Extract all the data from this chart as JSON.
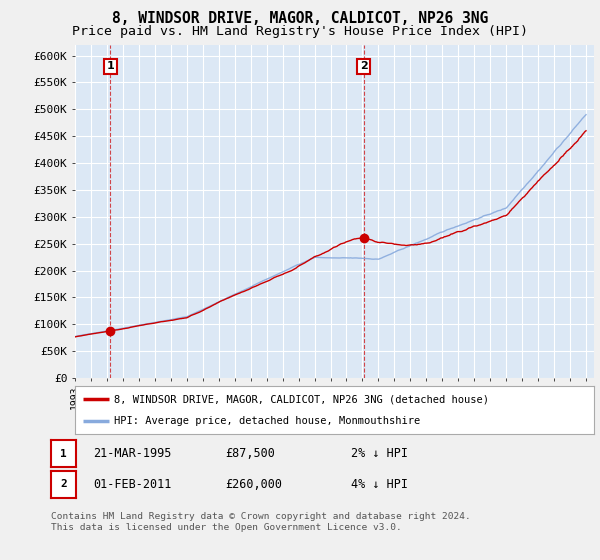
{
  "title_line1": "8, WINDSOR DRIVE, MAGOR, CALDICOT, NP26 3NG",
  "title_line2": "Price paid vs. HM Land Registry's House Price Index (HPI)",
  "ylabel_ticks": [
    "£0",
    "£50K",
    "£100K",
    "£150K",
    "£200K",
    "£250K",
    "£300K",
    "£350K",
    "£400K",
    "£450K",
    "£500K",
    "£550K",
    "£600K"
  ],
  "ytick_values": [
    0,
    50000,
    100000,
    150000,
    200000,
    250000,
    300000,
    350000,
    400000,
    450000,
    500000,
    550000,
    600000
  ],
  "xlim": [
    1993.0,
    2025.5
  ],
  "ylim": [
    0,
    620000
  ],
  "sale1_year": 1995.22,
  "sale1_price": 87500,
  "sale2_year": 2011.08,
  "sale2_price": 260000,
  "property_line_color": "#cc0000",
  "hpi_line_color": "#88aadd",
  "sale_marker_color": "#cc0000",
  "vline_color": "#cc0000",
  "background_color": "#f0f0f0",
  "plot_bg_color": "#dce8f5",
  "grid_color": "#ffffff",
  "legend_label1": "8, WINDSOR DRIVE, MAGOR, CALDICOT, NP26 3NG (detached house)",
  "legend_label2": "HPI: Average price, detached house, Monmouthshire",
  "table_row1": [
    "1",
    "21-MAR-1995",
    "£87,500",
    "2% ↓ HPI"
  ],
  "table_row2": [
    "2",
    "01-FEB-2011",
    "£260,000",
    "4% ↓ HPI"
  ],
  "footnote": "Contains HM Land Registry data © Crown copyright and database right 2024.\nThis data is licensed under the Open Government Licence v3.0.",
  "title_fontsize": 10.5,
  "subtitle_fontsize": 9.5,
  "tick_fontsize": 8,
  "figsize": [
    6.0,
    5.6
  ],
  "dpi": 100
}
